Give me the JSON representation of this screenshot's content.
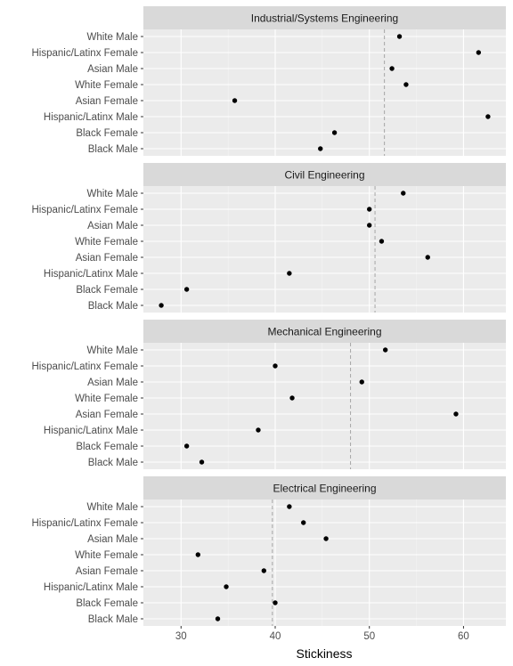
{
  "chart_data": {
    "type": "scatter",
    "xlabel": "Stickiness",
    "ylabel": "",
    "xlim": [
      26,
      64.5
    ],
    "x_ticks": [
      30,
      40,
      50,
      60
    ],
    "grid": true,
    "categories": [
      "White Male",
      "Hispanic/Latinx Female",
      "Asian Male",
      "White Female",
      "Asian Female",
      "Hispanic/Latinx Male",
      "Black Female",
      "Black Male"
    ],
    "panels": [
      {
        "title": "Industrial/Systems Engineering",
        "reference_line": 51.6,
        "values": [
          53.2,
          61.6,
          52.4,
          53.9,
          35.7,
          62.6,
          46.3,
          44.8
        ]
      },
      {
        "title": "Civil Engineering",
        "reference_line": 50.6,
        "values": [
          53.6,
          50.0,
          50.0,
          51.3,
          56.2,
          41.5,
          30.6,
          27.9
        ]
      },
      {
        "title": "Mechanical Engineering",
        "reference_line": 48.0,
        "values": [
          51.7,
          40.0,
          49.2,
          41.8,
          59.2,
          38.2,
          30.6,
          32.2
        ]
      },
      {
        "title": "Electrical Engineering",
        "reference_line": 39.7,
        "values": [
          41.5,
          43.0,
          45.4,
          31.8,
          38.8,
          34.8,
          40.0,
          33.9
        ]
      }
    ]
  }
}
